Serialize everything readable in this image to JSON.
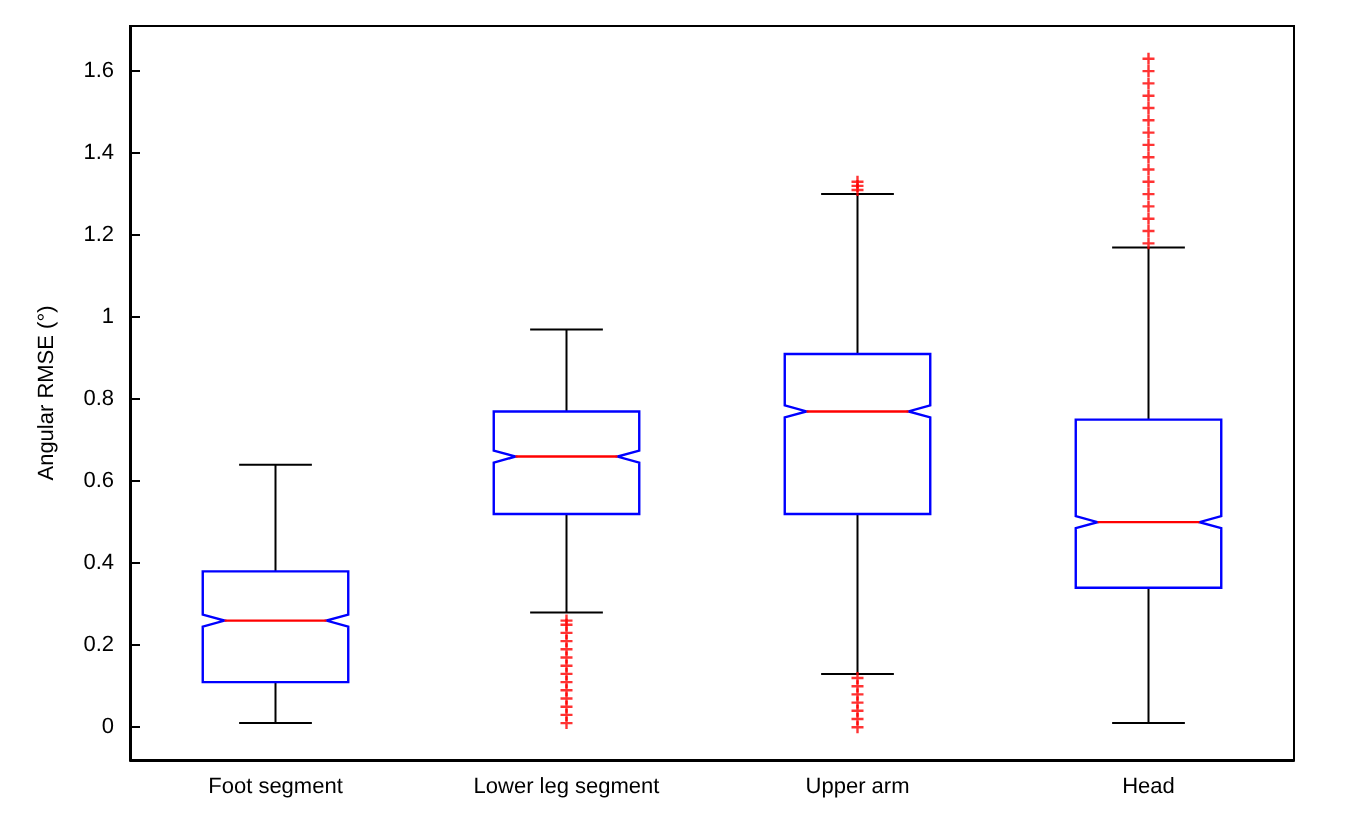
{
  "chart_data": {
    "type": "box",
    "ylabel": "Angular RMSE (°)",
    "categories": [
      "Foot segment",
      "Lower leg segment",
      "Upper arm",
      "Head"
    ],
    "ylim": [
      -0.08,
      1.71
    ],
    "yticks": [
      0,
      0.2,
      0.4,
      0.6,
      0.8,
      1,
      1.2,
      1.4,
      1.6
    ],
    "marker": "cross",
    "series": [
      {
        "color": "#0000ff",
        "boxes": [
          {
            "low": 0.01,
            "q1": 0.11,
            "median": 0.26,
            "q3": 0.38,
            "high": 0.64
          },
          {
            "low": 0.28,
            "q1": 0.52,
            "median": 0.66,
            "q3": 0.77,
            "high": 0.97,
            "outliers": [
              0.01,
              0.03,
              0.05,
              0.07,
              0.09,
              0.11,
              0.13,
              0.15,
              0.17,
              0.19,
              0.21,
              0.23,
              0.25,
              0.26
            ]
          },
          {
            "low": 0.13,
            "q1": 0.52,
            "median": 0.77,
            "q3": 0.91,
            "high": 1.3,
            "outliers": [
              0.0,
              0.02,
              0.04,
              0.06,
              0.08,
              0.1,
              0.12,
              1.31,
              1.32,
              1.33
            ]
          },
          {
            "low": 0.01,
            "q1": 0.34,
            "median": 0.5,
            "q3": 0.75,
            "high": 1.17,
            "outliers": [
              1.18,
              1.21,
              1.24,
              1.27,
              1.3,
              1.33,
              1.36,
              1.39,
              1.42,
              1.45,
              1.48,
              1.51,
              1.54,
              1.57,
              1.6,
              1.63
            ]
          }
        ]
      }
    ]
  }
}
